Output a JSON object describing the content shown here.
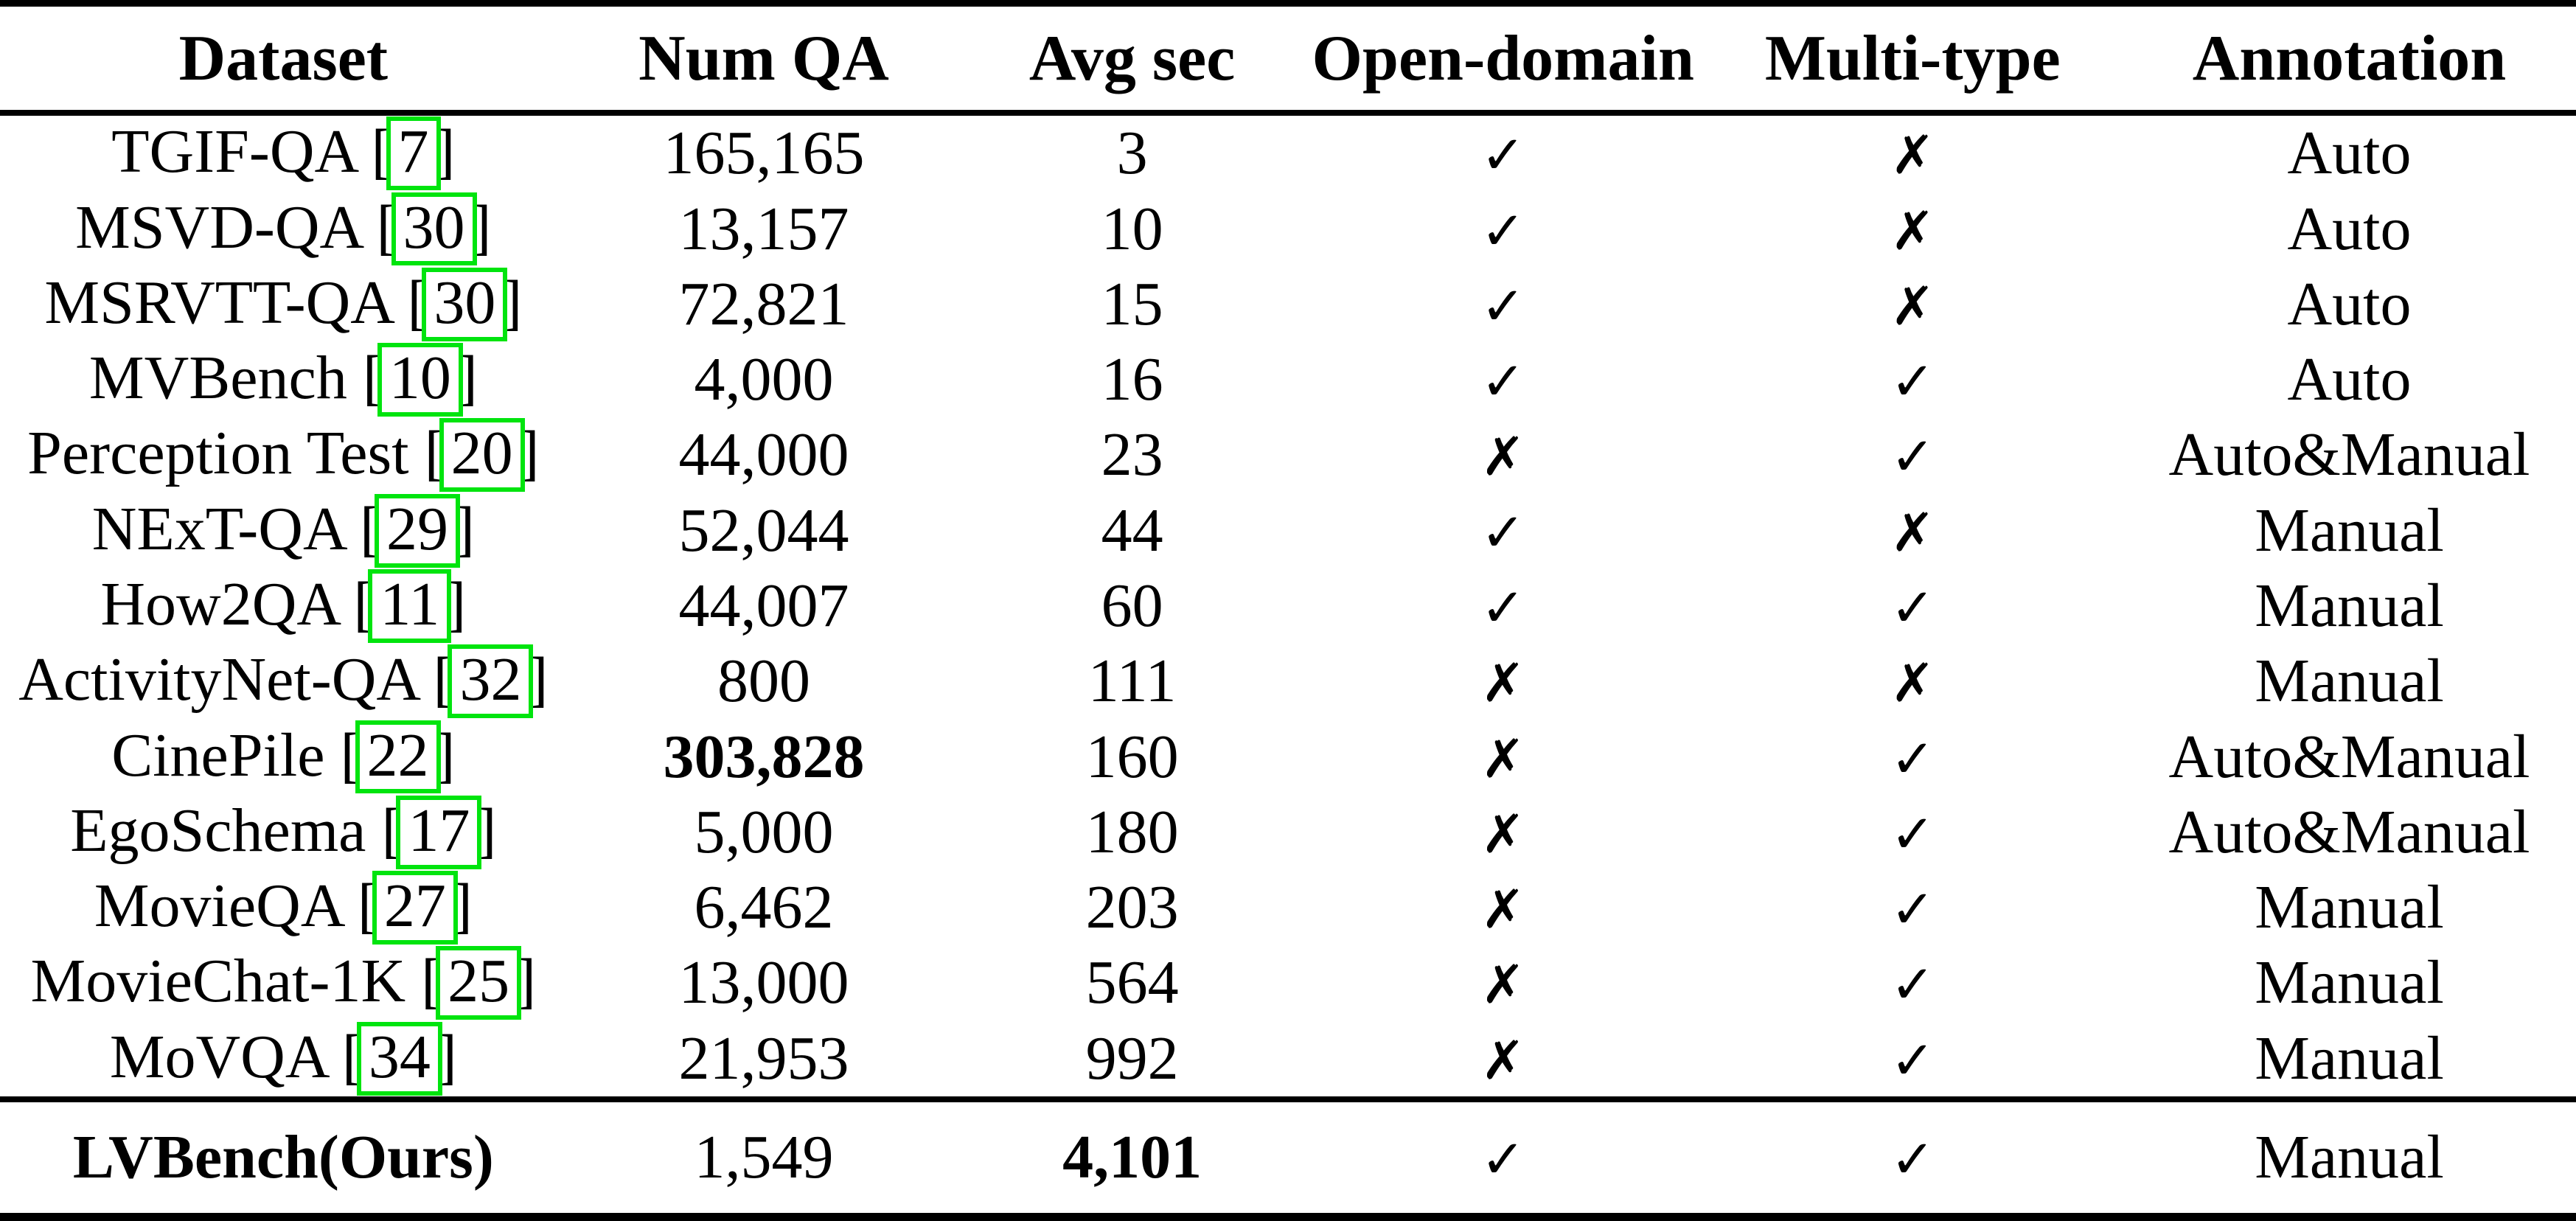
{
  "colors": {
    "citation_border": "#00e40e",
    "text": "#000000",
    "background": "#ffffff",
    "rule": "#000000"
  },
  "marks": {
    "check": "✓",
    "cross": "✗"
  },
  "table": {
    "columns": [
      "Dataset",
      "Num QA",
      "Avg sec",
      "Open-domain",
      "Multi-type",
      "Annotation"
    ],
    "rows": [
      {
        "dataset": "TGIF-QA",
        "cite": "7",
        "num_qa": "165,165",
        "num_qa_bold": false,
        "avg_sec": "3",
        "avg_sec_bold": false,
        "open_domain": "check",
        "multi_type": "cross",
        "annotation": "Auto"
      },
      {
        "dataset": "MSVD-QA",
        "cite": "30",
        "num_qa": "13,157",
        "num_qa_bold": false,
        "avg_sec": "10",
        "avg_sec_bold": false,
        "open_domain": "check",
        "multi_type": "cross",
        "annotation": "Auto"
      },
      {
        "dataset": "MSRVTT-QA",
        "cite": "30",
        "num_qa": "72,821",
        "num_qa_bold": false,
        "avg_sec": "15",
        "avg_sec_bold": false,
        "open_domain": "check",
        "multi_type": "cross",
        "annotation": "Auto"
      },
      {
        "dataset": "MVBench",
        "cite": "10",
        "num_qa": "4,000",
        "num_qa_bold": false,
        "avg_sec": "16",
        "avg_sec_bold": false,
        "open_domain": "check",
        "multi_type": "check",
        "annotation": "Auto"
      },
      {
        "dataset": "Perception Test",
        "cite": "20",
        "num_qa": "44,000",
        "num_qa_bold": false,
        "avg_sec": "23",
        "avg_sec_bold": false,
        "open_domain": "cross",
        "multi_type": "check",
        "annotation": "Auto&Manual"
      },
      {
        "dataset": "NExT-QA",
        "cite": "29",
        "num_qa": "52,044",
        "num_qa_bold": false,
        "avg_sec": "44",
        "avg_sec_bold": false,
        "open_domain": "check",
        "multi_type": "cross",
        "annotation": "Manual"
      },
      {
        "dataset": "How2QA",
        "cite": "11",
        "num_qa": "44,007",
        "num_qa_bold": false,
        "avg_sec": "60",
        "avg_sec_bold": false,
        "open_domain": "check",
        "multi_type": "check",
        "annotation": "Manual"
      },
      {
        "dataset": "ActivityNet-QA",
        "cite": "32",
        "num_qa": "800",
        "num_qa_bold": false,
        "avg_sec": "111",
        "avg_sec_bold": false,
        "open_domain": "cross",
        "multi_type": "cross",
        "annotation": "Manual"
      },
      {
        "dataset": "CinePile",
        "cite": "22",
        "num_qa": "303,828",
        "num_qa_bold": true,
        "avg_sec": "160",
        "avg_sec_bold": false,
        "open_domain": "cross",
        "multi_type": "check",
        "annotation": "Auto&Manual"
      },
      {
        "dataset": "EgoSchema",
        "cite": "17",
        "num_qa": "5,000",
        "num_qa_bold": false,
        "avg_sec": "180",
        "avg_sec_bold": false,
        "open_domain": "cross",
        "multi_type": "check",
        "annotation": "Auto&Manual"
      },
      {
        "dataset": "MovieQA",
        "cite": "27",
        "num_qa": "6,462",
        "num_qa_bold": false,
        "avg_sec": "203",
        "avg_sec_bold": false,
        "open_domain": "cross",
        "multi_type": "check",
        "annotation": "Manual"
      },
      {
        "dataset": "MovieChat-1K",
        "cite": "25",
        "num_qa": "13,000",
        "num_qa_bold": false,
        "avg_sec": "564",
        "avg_sec_bold": false,
        "open_domain": "cross",
        "multi_type": "check",
        "annotation": "Manual"
      },
      {
        "dataset": "MoVQA",
        "cite": "34",
        "num_qa": "21,953",
        "num_qa_bold": false,
        "avg_sec": "992",
        "avg_sec_bold": false,
        "open_domain": "cross",
        "multi_type": "check",
        "annotation": "Manual"
      }
    ],
    "footer": {
      "dataset": "LVBench(Ours)",
      "dataset_bold": true,
      "cite": null,
      "num_qa": "1,549",
      "num_qa_bold": false,
      "avg_sec": "4,101",
      "avg_sec_bold": true,
      "open_domain": "check",
      "multi_type": "check",
      "annotation": "Manual"
    }
  }
}
